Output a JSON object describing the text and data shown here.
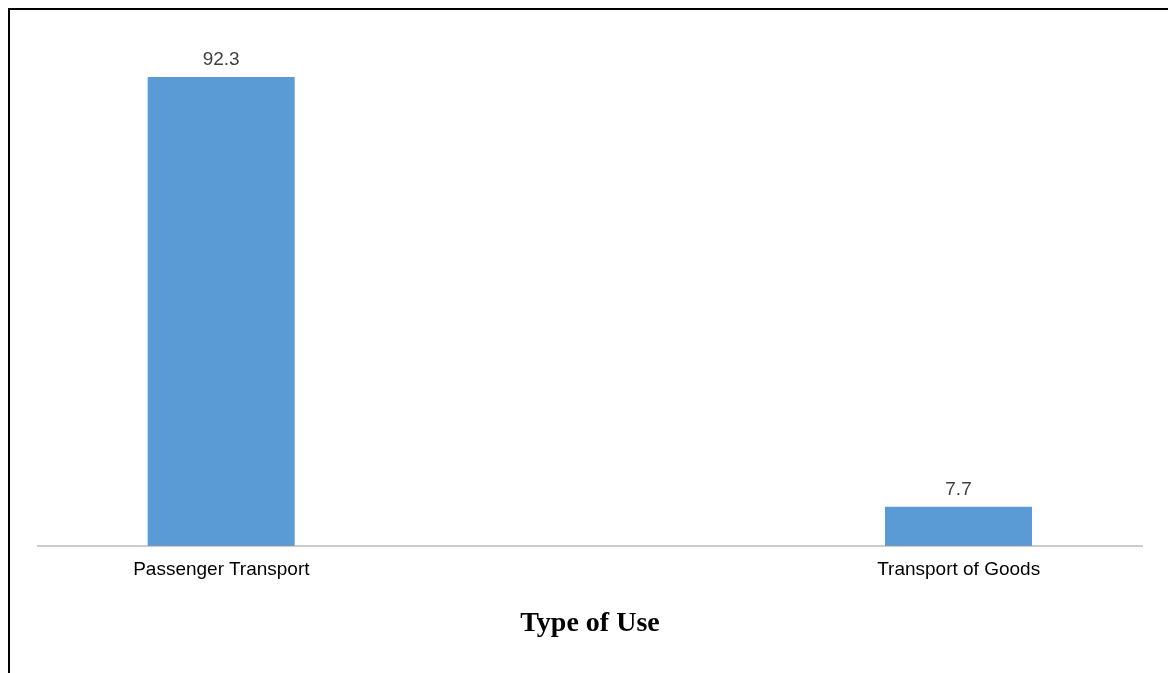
{
  "chart_data": {
    "type": "bar",
    "xlabel": "Type of Use",
    "categories": [
      "Passenger Transport",
      "Transport of Goods"
    ],
    "values": [
      92.3,
      7.7
    ],
    "color": "#5b9bd5",
    "data_labels": true,
    "grid": false,
    "legend": false
  }
}
